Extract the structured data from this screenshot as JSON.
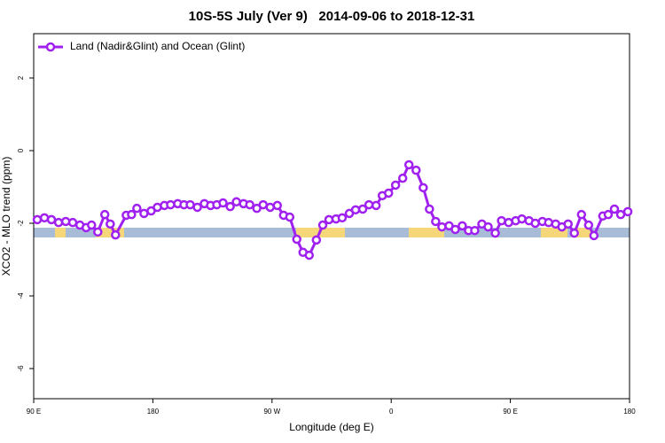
{
  "chart_data": {
    "type": "line",
    "title": "10S-5S July (Ver 9)   2014-09-06 to 2018-12-31",
    "xlabel": "Longitude (deg E)",
    "ylabel": "XCO2 - MLO trend (ppm)",
    "legend": "top-left",
    "x": [
      92.7,
      98.1,
      103.4,
      108.8,
      114.2,
      119.5,
      124.9,
      129.6,
      133.7,
      138.4,
      143.7,
      147.8,
      151.8,
      159.9,
      163.9,
      167.9,
      173.3,
      178.7,
      183.4,
      188.7,
      193.4,
      198.8,
      203.5,
      208.2,
      213.6,
      218.9,
      223.6,
      228.3,
      233.0,
      238.4,
      243.1,
      248.5,
      253.2,
      258.5,
      263.3,
      268.6,
      274.0,
      278.7,
      283.4,
      288.7,
      293.4,
      298.1,
      303.5,
      308.3,
      313.0,
      318.3,
      323.0,
      328.4,
      333.1,
      338.5,
      343.2,
      348.6,
      353.3,
      358.0,
      363.3,
      368.7,
      373.4,
      378.8,
      384.2,
      388.9,
      393.6,
      398.3,
      403.7,
      408.4,
      413.7,
      418.4,
      423.1,
      428.5,
      433.2,
      438.6,
      443.3,
      448.7,
      454.0,
      458.7,
      464.1,
      468.8,
      474.2,
      478.9,
      484.2,
      488.9,
      493.6,
      498.3,
      503.7,
      509.1,
      513.1,
      519.8,
      523.9,
      528.6,
      533.3,
      538.7
    ],
    "series": [
      {
        "name": "Land (Nadir&Glint) and Ocean (Glint)",
        "color": "#a020f0",
        "values": [
          -1.9,
          -1.85,
          -1.9,
          -1.98,
          -1.95,
          -1.98,
          -2.05,
          -2.12,
          -2.05,
          -2.24,
          -1.76,
          -2.02,
          -2.32,
          -1.78,
          -1.76,
          -1.59,
          -1.73,
          -1.66,
          -1.56,
          -1.51,
          -1.49,
          -1.46,
          -1.49,
          -1.49,
          -1.56,
          -1.46,
          -1.51,
          -1.49,
          -1.44,
          -1.54,
          -1.41,
          -1.46,
          -1.49,
          -1.59,
          -1.49,
          -1.56,
          -1.51,
          -1.78,
          -1.83,
          -2.44,
          -2.8,
          -2.88,
          -2.46,
          -2.05,
          -1.9,
          -1.88,
          -1.85,
          -1.73,
          -1.63,
          -1.61,
          -1.49,
          -1.51,
          -1.24,
          -1.17,
          -0.95,
          -0.76,
          -0.39,
          -0.54,
          -1.02,
          -1.61,
          -1.95,
          -2.1,
          -2.07,
          -2.17,
          -2.07,
          -2.2,
          -2.2,
          -2.02,
          -2.1,
          -2.27,
          -1.93,
          -1.98,
          -1.93,
          -1.88,
          -1.93,
          -2.0,
          -1.95,
          -1.98,
          -2.02,
          -2.1,
          -2.02,
          -2.27,
          -1.76,
          -2.05,
          -2.34,
          -1.8,
          -1.76,
          -1.61,
          -1.76,
          -1.68
        ]
      }
    ],
    "xlim": [
      90,
      540
    ],
    "xticks": [
      {
        "value": 90,
        "label": "90 E"
      },
      180,
      {
        "value": 270,
        "label": "90 W"
      },
      {
        "value": 360,
        "label": "0"
      },
      {
        "value": 450,
        "label": "90 E"
      },
      {
        "value": 540,
        "label": "180"
      }
    ],
    "ylim": [
      -6.83,
      3.22
    ],
    "yticks": [
      -6,
      -4,
      -2,
      0,
      2
    ]
  }
}
